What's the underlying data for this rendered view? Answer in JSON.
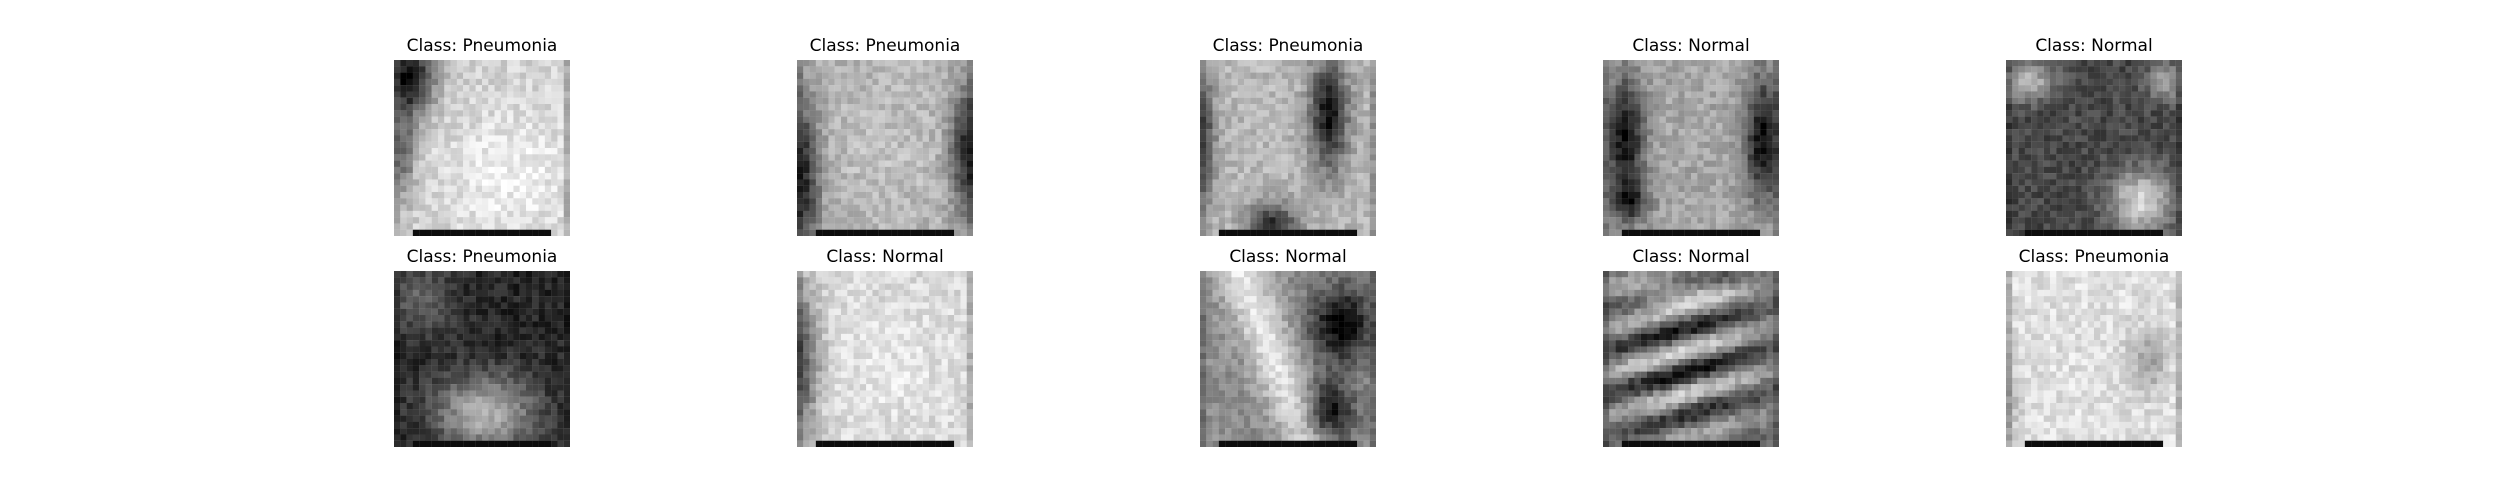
{
  "figure": {
    "panels": [
      {
        "title": "Class: Pneumonia",
        "image": "chest-xray-pneumonia-1"
      },
      {
        "title": "Class: Pneumonia",
        "image": "chest-xray-pneumonia-2"
      },
      {
        "title": "Class: Pneumonia",
        "image": "chest-xray-pneumonia-3"
      },
      {
        "title": "Class: Normal",
        "image": "chest-xray-normal-1"
      },
      {
        "title": "Class: Normal",
        "image": "chest-xray-normal-2"
      },
      {
        "title": "Class: Pneumonia",
        "image": "chest-xray-pneumonia-4"
      },
      {
        "title": "Class: Normal",
        "image": "chest-xray-normal-3"
      },
      {
        "title": "Class: Normal",
        "image": "chest-xray-normal-4"
      },
      {
        "title": "Class: Normal",
        "image": "chest-xray-normal-5"
      },
      {
        "title": "Class: Pneumonia",
        "image": "chest-xray-pneumonia-5"
      }
    ]
  }
}
